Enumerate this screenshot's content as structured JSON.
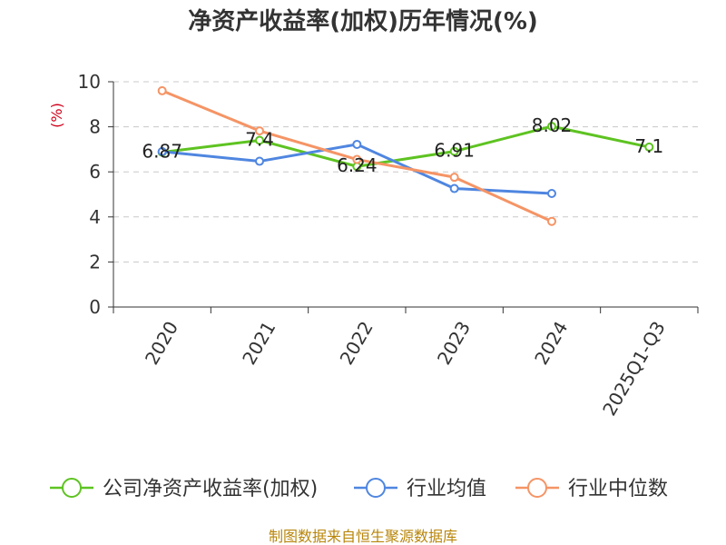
{
  "chart_data": {
    "type": "line",
    "title": "净资产收益率(加权)历年情况(%)",
    "ylabel": "(%)",
    "categories": [
      "2020",
      "2021",
      "2022",
      "2023",
      "2024",
      "2025Q1-Q3"
    ],
    "ylim": [
      0,
      10
    ],
    "yticks": [
      0,
      2,
      4,
      6,
      8,
      10
    ],
    "grid": true,
    "legend_position": "bottom",
    "series": [
      {
        "name": "公司净资产收益率(加权)",
        "color": "#5ec321",
        "values": [
          6.87,
          7.4,
          6.24,
          6.91,
          8.02,
          7.1
        ],
        "labels": [
          "6.87",
          "7.4",
          "6.24",
          "6.91",
          "8.02",
          "7.1"
        ]
      },
      {
        "name": "行业均值",
        "color": "#4f86e0",
        "values": [
          6.9,
          6.47,
          7.22,
          5.26,
          5.04,
          null
        ]
      },
      {
        "name": "行业中位数",
        "color": "#f59465",
        "values": [
          9.6,
          7.82,
          6.55,
          5.76,
          3.8,
          null
        ]
      }
    ]
  },
  "footer": {
    "source": "制图数据来自恒生聚源数据库"
  }
}
